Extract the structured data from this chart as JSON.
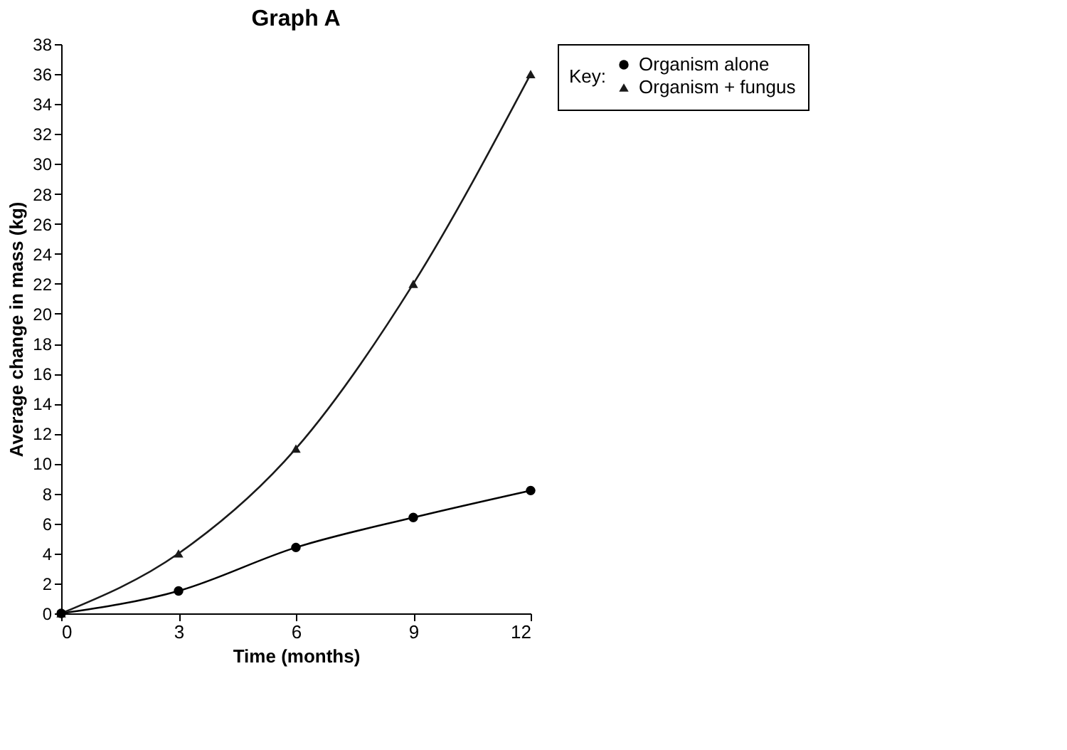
{
  "chart_data": {
    "type": "line",
    "title": "Graph A",
    "xlabel": "Time (months)",
    "ylabel": "Average change in mass (kg)",
    "legend_title": "Key:",
    "x": [
      0,
      3,
      6,
      9,
      12
    ],
    "series": [
      {
        "name": "Organism alone",
        "color": "#000000",
        "marker": "circle",
        "values": [
          0,
          1.5,
          4.4,
          6.4,
          8.2
        ]
      },
      {
        "name": "Organism + fungus",
        "color": "#1a1a1a",
        "marker": "triangle",
        "values": [
          0,
          4,
          11,
          22,
          36
        ]
      }
    ],
    "xlim": [
      0,
      12
    ],
    "xticks": [
      0,
      3,
      6,
      9,
      12
    ],
    "ylim": [
      0,
      38
    ],
    "yticks": [
      0,
      2,
      4,
      6,
      8,
      10,
      12,
      14,
      16,
      18,
      20,
      22,
      24,
      26,
      28,
      30,
      32,
      34,
      36,
      38
    ],
    "grid": false,
    "legend": "right",
    "line_style": "solid"
  }
}
